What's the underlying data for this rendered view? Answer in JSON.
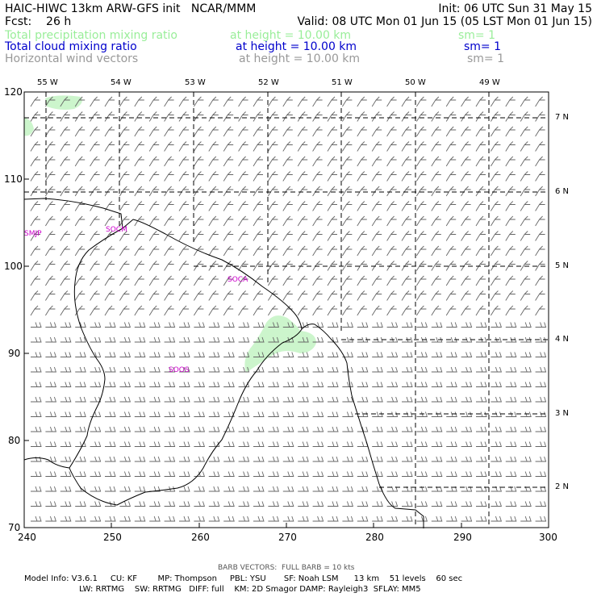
{
  "header": {
    "line1_left": "HAIC-HIWC 13km ARW-GFS init   NCAR/MMM",
    "line1_right": "Init: 06 UTC Sun 31 May 15",
    "line2_left": "Fcst:    26 h",
    "line2_right": "Valid: 08 UTC Mon 01 Jun 15 (05 LST Mon 01 Jun 15)",
    "fields": [
      {
        "name": "Total precipitation mixing ratio",
        "height": "at height = 10.00 km",
        "sm": "sm= 1",
        "color": "#99ee99"
      },
      {
        "name": "Total cloud mixing ratio",
        "height": "at height = 10.00 km",
        "sm": "sm= 1",
        "color": "#0000cc"
      },
      {
        "name": "Horizontal wind vectors",
        "height": "at height = 10.00 km",
        "sm": "sm= 1",
        "color": "#999999"
      }
    ]
  },
  "axes": {
    "x_ticks": [
      "240",
      "250",
      "260",
      "270",
      "280",
      "290",
      "300"
    ],
    "y_ticks": [
      "120",
      "110",
      "100",
      "90",
      "80",
      "70"
    ],
    "lon_labels": [
      "55 W",
      "54 W",
      "53 W",
      "52 W",
      "51 W",
      "50 W",
      "49 W"
    ],
    "lat_labels": [
      "7 N",
      "6 N",
      "5 N",
      "4 N",
      "3 N",
      "2 N"
    ]
  },
  "stations": [
    "SMJP",
    "SOCM",
    "SOCA",
    "SOOS"
  ],
  "footer": {
    "barb": "BARB VECTORS:  FULL BARB = 10 kts",
    "line1": "Model Info: V3.6.1     CU: KF        MP: Thompson     PBL: YSU       SF: Noah LSM      13 km    51 levels    60 sec",
    "line2": "LW: RRTMG    SW: RRTMG   DIFF: full    KM: 2D Smagor DAMP: Rayleigh3  SFLAY: MM5"
  },
  "colors": {
    "precip": "#ccf5cc",
    "coast": "#000000",
    "barbs": "#666666",
    "station": "#cc00cc"
  }
}
